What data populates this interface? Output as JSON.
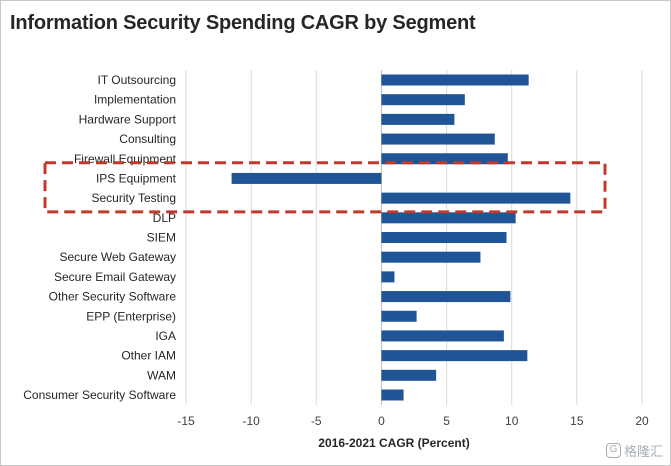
{
  "chart_data": {
    "type": "bar",
    "orientation": "horizontal",
    "title": "Information Security Spending CAGR by Segment",
    "xlabel": "2016-2021 CAGR (Percent)",
    "ylabel": "",
    "xlim": [
      -15,
      20
    ],
    "xticks": [
      -15,
      -10,
      -5,
      0,
      5,
      10,
      15,
      20
    ],
    "grid": "vertical",
    "bar_color": "#1f5597",
    "categories": [
      "IT Outsourcing",
      "Implementation",
      "Hardware Support",
      "Consulting",
      "Firewall Equipment",
      "IPS Equipment",
      "Security Testing",
      "DLP",
      "SIEM",
      "Secure Web Gateway",
      "Secure Email Gateway",
      "Other Security Software",
      "EPP (Enterprise)",
      "IGA",
      "Other IAM",
      "WAM",
      "Consumer Security Software"
    ],
    "values": [
      11.3,
      6.4,
      5.6,
      8.7,
      9.7,
      -11.5,
      14.5,
      10.3,
      9.6,
      7.6,
      1.0,
      9.9,
      2.7,
      9.4,
      11.2,
      4.2,
      1.7
    ],
    "annotation": {
      "type": "dashed-box",
      "color": "#c0392b",
      "highlighted_categories": [
        "IPS Equipment",
        "Security Testing"
      ]
    }
  },
  "watermark": {
    "icon": "gezhi-logo-icon",
    "text": "格隆汇"
  }
}
